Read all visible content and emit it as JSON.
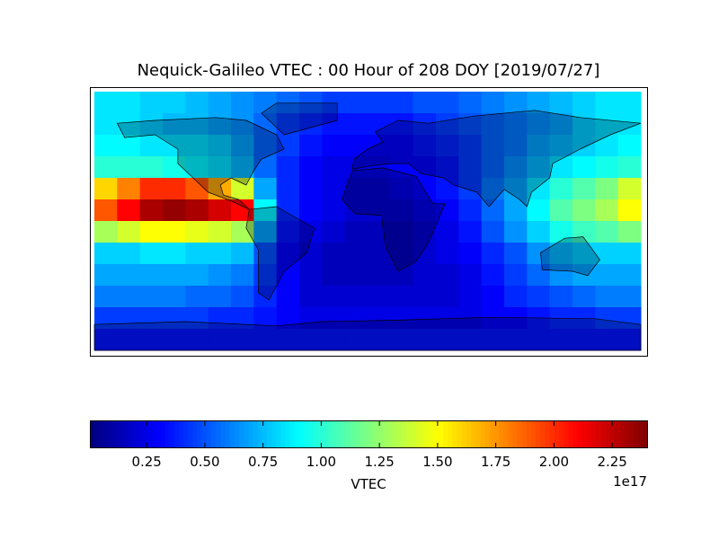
{
  "chart_data": {
    "type": "heatmap",
    "title": "Nequick-Galileo VTEC : 00 Hour of 208 DOY [2019/07/27]",
    "colormap": "jet",
    "colorbar_label": "VTEC",
    "colorbar_offset": "1e17",
    "clim": [
      0.01,
      2.4
    ],
    "cticks": [
      0.25,
      {
        "value": 0.5,
        "label": "0.50"
      },
      0.75,
      {
        "value": 1.0,
        "label": "1.00"
      },
      1.25,
      {
        "value": 1.5,
        "label": "1.50"
      },
      1.75,
      {
        "value": 2.0,
        "label": "2.00"
      },
      2.25
    ],
    "values": [
      [
        0.85,
        0.85,
        0.8,
        0.8,
        0.75,
        0.7,
        0.65,
        0.6,
        0.55,
        0.5,
        0.45,
        0.45,
        0.45,
        0.45,
        0.5,
        0.5,
        0.55,
        0.6,
        0.65,
        0.7,
        0.75,
        0.8,
        0.85,
        0.85
      ],
      [
        0.85,
        0.85,
        0.8,
        0.75,
        0.75,
        0.7,
        0.65,
        0.55,
        0.45,
        0.4,
        0.35,
        0.35,
        0.35,
        0.35,
        0.4,
        0.45,
        0.5,
        0.55,
        0.6,
        0.65,
        0.7,
        0.8,
        0.85,
        0.85
      ],
      [
        0.9,
        0.9,
        0.85,
        0.85,
        0.85,
        0.8,
        0.7,
        0.55,
        0.45,
        0.35,
        0.3,
        0.3,
        0.3,
        0.3,
        0.35,
        0.4,
        0.45,
        0.55,
        0.6,
        0.7,
        0.75,
        0.8,
        0.85,
        0.9
      ],
      [
        1.0,
        1.0,
        1.0,
        0.95,
        0.9,
        0.85,
        0.75,
        0.55,
        0.4,
        0.3,
        0.25,
        0.25,
        0.25,
        0.3,
        0.3,
        0.35,
        0.45,
        0.55,
        0.65,
        0.75,
        0.85,
        0.9,
        0.95,
        1.0
      ],
      [
        1.6,
        1.8,
        2.0,
        2.0,
        1.9,
        1.7,
        1.4,
        0.7,
        0.4,
        0.3,
        0.25,
        0.2,
        0.2,
        0.25,
        0.3,
        0.35,
        0.45,
        0.6,
        0.7,
        0.85,
        1.0,
        1.1,
        1.2,
        1.4
      ],
      [
        1.9,
        2.1,
        2.3,
        2.35,
        2.3,
        2.2,
        2.1,
        0.9,
        0.4,
        0.3,
        0.25,
        0.2,
        0.2,
        0.2,
        0.25,
        0.3,
        0.4,
        0.55,
        0.7,
        0.9,
        1.1,
        1.2,
        1.3,
        1.5
      ],
      [
        1.3,
        1.4,
        1.5,
        1.5,
        1.45,
        1.4,
        1.3,
        0.7,
        0.35,
        0.25,
        0.2,
        0.15,
        0.15,
        0.15,
        0.2,
        0.25,
        0.35,
        0.5,
        0.65,
        0.8,
        0.95,
        1.05,
        1.1,
        1.2
      ],
      [
        0.8,
        0.8,
        0.85,
        0.85,
        0.8,
        0.8,
        0.75,
        0.5,
        0.3,
        0.2,
        0.15,
        0.15,
        0.15,
        0.15,
        0.2,
        0.25,
        0.3,
        0.4,
        0.5,
        0.65,
        0.75,
        0.8,
        0.8,
        0.8
      ],
      [
        0.7,
        0.7,
        0.7,
        0.7,
        0.7,
        0.65,
        0.6,
        0.45,
        0.3,
        0.2,
        0.15,
        0.15,
        0.15,
        0.15,
        0.2,
        0.2,
        0.25,
        0.35,
        0.45,
        0.55,
        0.65,
        0.7,
        0.7,
        0.7
      ],
      [
        0.6,
        0.6,
        0.6,
        0.6,
        0.55,
        0.55,
        0.5,
        0.4,
        0.3,
        0.2,
        0.2,
        0.2,
        0.2,
        0.2,
        0.2,
        0.2,
        0.25,
        0.3,
        0.4,
        0.45,
        0.5,
        0.55,
        0.6,
        0.6
      ],
      [
        0.45,
        0.45,
        0.45,
        0.45,
        0.45,
        0.4,
        0.4,
        0.35,
        0.3,
        0.25,
        0.25,
        0.25,
        0.25,
        0.25,
        0.25,
        0.25,
        0.25,
        0.3,
        0.3,
        0.35,
        0.4,
        0.4,
        0.45,
        0.45
      ],
      [
        0.35,
        0.35,
        0.35,
        0.35,
        0.35,
        0.35,
        0.35,
        0.35,
        0.35,
        0.35,
        0.35,
        0.35,
        0.35,
        0.35,
        0.35,
        0.35,
        0.35,
        0.35,
        0.35,
        0.35,
        0.35,
        0.35,
        0.35,
        0.35
      ]
    ]
  }
}
